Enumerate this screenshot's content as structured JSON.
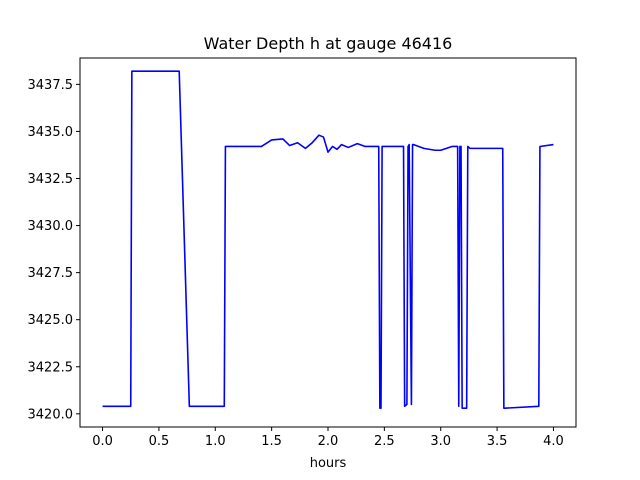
{
  "chart_data": {
    "type": "line",
    "title": "Water Depth h at gauge 46416",
    "xlabel": "hours",
    "ylabel": "",
    "xlim": [
      -0.2,
      4.2
    ],
    "ylim": [
      3419.3,
      3438.9
    ],
    "xticks": [
      0.0,
      0.5,
      1.0,
      1.5,
      2.0,
      2.5,
      3.0,
      3.5,
      4.0
    ],
    "xtick_labels": [
      "0.0",
      "0.5",
      "1.0",
      "1.5",
      "2.0",
      "2.5",
      "3.0",
      "3.5",
      "4.0"
    ],
    "yticks": [
      3420.0,
      3422.5,
      3425.0,
      3427.5,
      3430.0,
      3432.5,
      3435.0,
      3437.5
    ],
    "ytick_labels": [
      "3420.0",
      "3422.5",
      "3425.0",
      "3427.5",
      "3430.0",
      "3432.5",
      "3435.0",
      "3437.5"
    ],
    "grid": false,
    "series": [
      {
        "color": "#0000ff",
        "x": [
          0.0,
          0.25,
          0.26,
          0.68,
          0.77,
          1.08,
          1.09,
          1.41,
          1.5,
          1.6,
          1.66,
          1.73,
          1.8,
          1.86,
          1.92,
          1.96,
          2.0,
          2.04,
          2.08,
          2.12,
          2.18,
          2.26,
          2.33,
          2.4,
          2.45,
          2.46,
          2.47,
          2.48,
          2.66,
          2.67,
          2.68,
          2.7,
          2.71,
          2.72,
          2.74,
          2.75,
          2.76,
          2.85,
          2.95,
          3.0,
          3.1,
          3.15,
          3.16,
          3.17,
          3.18,
          3.19,
          3.2,
          3.23,
          3.24,
          3.26,
          3.4,
          3.55,
          3.56,
          3.57,
          3.87,
          3.88,
          4.0
        ],
        "y": [
          3420.4,
          3420.4,
          3438.2,
          3438.2,
          3420.4,
          3420.4,
          3434.2,
          3434.2,
          3434.55,
          3434.6,
          3434.25,
          3434.4,
          3434.1,
          3434.4,
          3434.8,
          3434.7,
          3433.9,
          3434.2,
          3434.05,
          3434.3,
          3434.15,
          3434.35,
          3434.2,
          3434.2,
          3434.2,
          3420.3,
          3420.3,
          3434.2,
          3434.2,
          3434.2,
          3420.4,
          3420.5,
          3434.2,
          3434.3,
          3420.5,
          3434.3,
          3434.3,
          3434.1,
          3434.0,
          3434.0,
          3434.2,
          3434.2,
          3420.4,
          3434.2,
          3434.2,
          3420.3,
          3420.3,
          3420.3,
          3434.2,
          3434.1,
          3434.1,
          3434.1,
          3420.3,
          3420.3,
          3420.4,
          3434.2,
          3434.3
        ]
      }
    ]
  }
}
